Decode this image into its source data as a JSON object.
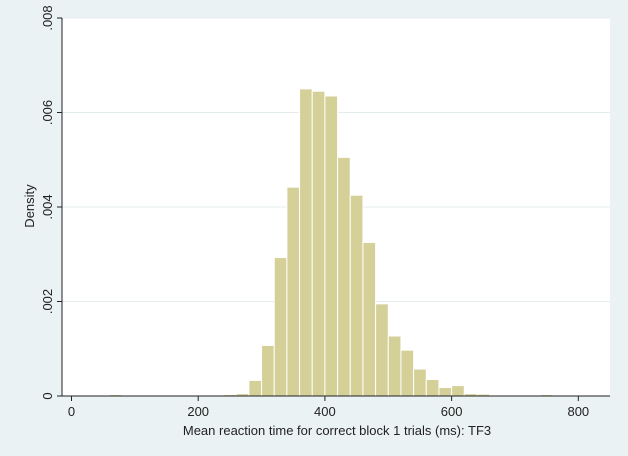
{
  "chart_data": {
    "type": "bar",
    "subtype": "histogram",
    "title": "",
    "xlabel": "Mean reaction time for correct block 1 trials (ms): TF3",
    "ylabel": "Density",
    "xlim": [
      -15,
      850
    ],
    "ylim": [
      0,
      0.008
    ],
    "bin_width": 20,
    "x_ticks": [
      {
        "value": 0,
        "label": "0"
      },
      {
        "value": 200,
        "label": "200"
      },
      {
        "value": 400,
        "label": "400"
      },
      {
        "value": 600,
        "label": "600"
      },
      {
        "value": 800,
        "label": "800"
      }
    ],
    "y_ticks": [
      {
        "value": 0,
        "label": "0"
      },
      {
        "value": 0.002,
        "label": ".002"
      },
      {
        "value": 0.004,
        "label": ".004"
      },
      {
        "value": 0.006,
        "label": ".006"
      },
      {
        "value": 0.008,
        "label": ".008"
      }
    ],
    "grid": true,
    "legend": "none",
    "bar_fill": "#d5cf98",
    "bar_stroke": "#ffffff",
    "bins": [
      {
        "x0": 40,
        "x1": 60,
        "density": 2e-05
      },
      {
        "x0": 60,
        "x1": 80,
        "density": 3e-05
      },
      {
        "x0": 80,
        "x1": 100,
        "density": 2e-05
      },
      {
        "x0": 220,
        "x1": 240,
        "density": 2e-05
      },
      {
        "x0": 240,
        "x1": 260,
        "density": 3e-05
      },
      {
        "x0": 260,
        "x1": 280,
        "density": 5e-05
      },
      {
        "x0": 280,
        "x1": 300,
        "density": 0.00033
      },
      {
        "x0": 300,
        "x1": 320,
        "density": 0.00107
      },
      {
        "x0": 320,
        "x1": 340,
        "density": 0.00293
      },
      {
        "x0": 340,
        "x1": 360,
        "density": 0.00442
      },
      {
        "x0": 360,
        "x1": 380,
        "density": 0.0065
      },
      {
        "x0": 380,
        "x1": 400,
        "density": 0.00645
      },
      {
        "x0": 400,
        "x1": 420,
        "density": 0.00635
      },
      {
        "x0": 420,
        "x1": 440,
        "density": 0.00505
      },
      {
        "x0": 440,
        "x1": 460,
        "density": 0.00425
      },
      {
        "x0": 460,
        "x1": 480,
        "density": 0.00325
      },
      {
        "x0": 480,
        "x1": 500,
        "density": 0.00195
      },
      {
        "x0": 500,
        "x1": 520,
        "density": 0.00127
      },
      {
        "x0": 520,
        "x1": 540,
        "density": 0.00097
      },
      {
        "x0": 540,
        "x1": 560,
        "density": 0.00057
      },
      {
        "x0": 560,
        "x1": 580,
        "density": 0.00035
      },
      {
        "x0": 580,
        "x1": 600,
        "density": 0.00018
      },
      {
        "x0": 600,
        "x1": 620,
        "density": 0.00022
      },
      {
        "x0": 620,
        "x1": 640,
        "density": 5e-05
      },
      {
        "x0": 640,
        "x1": 660,
        "density": 4e-05
      },
      {
        "x0": 720,
        "x1": 740,
        "density": 2e-05
      },
      {
        "x0": 740,
        "x1": 760,
        "density": 3e-05
      },
      {
        "x0": 760,
        "x1": 780,
        "density": 2e-05
      },
      {
        "x0": 800,
        "x1": 820,
        "density": 2e-05
      }
    ]
  }
}
